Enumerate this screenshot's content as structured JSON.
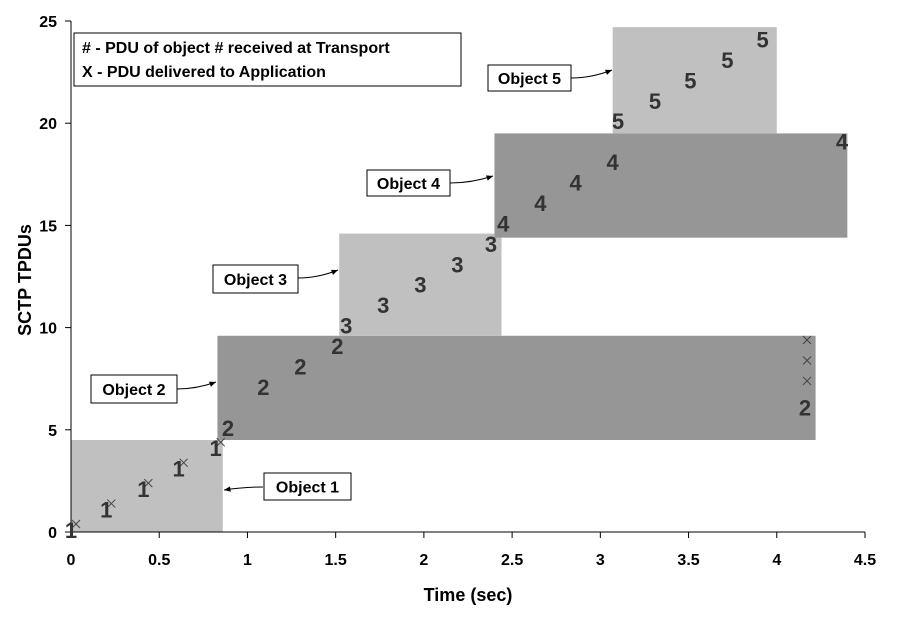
{
  "chart_data": {
    "type": "scatter",
    "xlabel": "Time (sec)",
    "ylabel": "SCTP TPDUs",
    "xlim": [
      0,
      4.5
    ],
    "ylim": [
      0,
      25
    ],
    "xticks": [
      "0",
      "0.5",
      "1",
      "1.5",
      "2",
      "2.5",
      "3",
      "3.5",
      "4",
      "4.5"
    ],
    "yticks": [
      "0",
      "5",
      "10",
      "15",
      "20",
      "25"
    ],
    "xtick_values": [
      0,
      0.5,
      1,
      1.5,
      2,
      2.5,
      3,
      3.5,
      4,
      4.5
    ],
    "ytick_values": [
      0,
      5,
      10,
      15,
      20,
      25
    ],
    "legend": {
      "position": "top-left",
      "lines": [
        "# - PDU of object # received at Transport",
        "X - PDU delivered to Application"
      ]
    },
    "objects": [
      {
        "name": "Object 1",
        "label": "1",
        "color": "#c0c0c0",
        "x_range": [
          0,
          0.86
        ],
        "y_range": [
          0,
          4.5
        ]
      },
      {
        "name": "Object 2",
        "label": "2",
        "color": "#969696",
        "x_range": [
          0.83,
          4.22
        ],
        "y_range": [
          4.5,
          9.6
        ]
      },
      {
        "name": "Object 3",
        "label": "3",
        "color": "#c0c0c0",
        "x_range": [
          1.52,
          2.44
        ],
        "y_range": [
          9.6,
          14.6
        ]
      },
      {
        "name": "Object 4",
        "label": "4",
        "color": "#969696",
        "x_range": [
          2.4,
          4.4
        ],
        "y_range": [
          14.4,
          19.5
        ]
      },
      {
        "name": "Object 5",
        "label": "5",
        "color": "#c0c0c0",
        "x_range": [
          3.07,
          4.0
        ],
        "y_range": [
          19.5,
          24.7
        ]
      }
    ],
    "received_pdus": [
      {
        "x": 0.0,
        "y": 0,
        "label": "1"
      },
      {
        "x": 0.2,
        "y": 1,
        "label": "1"
      },
      {
        "x": 0.41,
        "y": 2,
        "label": "1"
      },
      {
        "x": 0.61,
        "y": 3,
        "label": "1"
      },
      {
        "x": 0.82,
        "y": 4,
        "label": "1"
      },
      {
        "x": 0.89,
        "y": 5,
        "label": "2"
      },
      {
        "x": 1.09,
        "y": 7,
        "label": "2"
      },
      {
        "x": 1.3,
        "y": 8,
        "label": "2"
      },
      {
        "x": 1.51,
        "y": 9,
        "label": "2"
      },
      {
        "x": 1.56,
        "y": 10,
        "label": "3"
      },
      {
        "x": 1.77,
        "y": 11,
        "label": "3"
      },
      {
        "x": 1.98,
        "y": 12,
        "label": "3"
      },
      {
        "x": 2.19,
        "y": 13,
        "label": "3"
      },
      {
        "x": 2.38,
        "y": 14,
        "label": "3"
      },
      {
        "x": 2.45,
        "y": 15,
        "label": "4"
      },
      {
        "x": 2.66,
        "y": 16,
        "label": "4"
      },
      {
        "x": 2.86,
        "y": 17,
        "label": "4"
      },
      {
        "x": 3.07,
        "y": 18,
        "label": "4"
      },
      {
        "x": 4.37,
        "y": 19,
        "label": "4"
      },
      {
        "x": 3.1,
        "y": 20,
        "label": "5"
      },
      {
        "x": 3.31,
        "y": 21,
        "label": "5"
      },
      {
        "x": 3.51,
        "y": 22,
        "label": "5"
      },
      {
        "x": 3.72,
        "y": 23,
        "label": "5"
      },
      {
        "x": 3.92,
        "y": 24,
        "label": "5"
      },
      {
        "x": 4.16,
        "y": 6,
        "label": "2"
      }
    ],
    "delivered_pdus": [
      {
        "x": 0.0,
        "y": 0
      },
      {
        "x": 0.2,
        "y": 1
      },
      {
        "x": 0.41,
        "y": 2
      },
      {
        "x": 0.61,
        "y": 3
      },
      {
        "x": 0.82,
        "y": 4
      },
      {
        "x": 4.16,
        "y": 7
      },
      {
        "x": 4.16,
        "y": 8
      },
      {
        "x": 4.16,
        "y": 9
      }
    ]
  }
}
